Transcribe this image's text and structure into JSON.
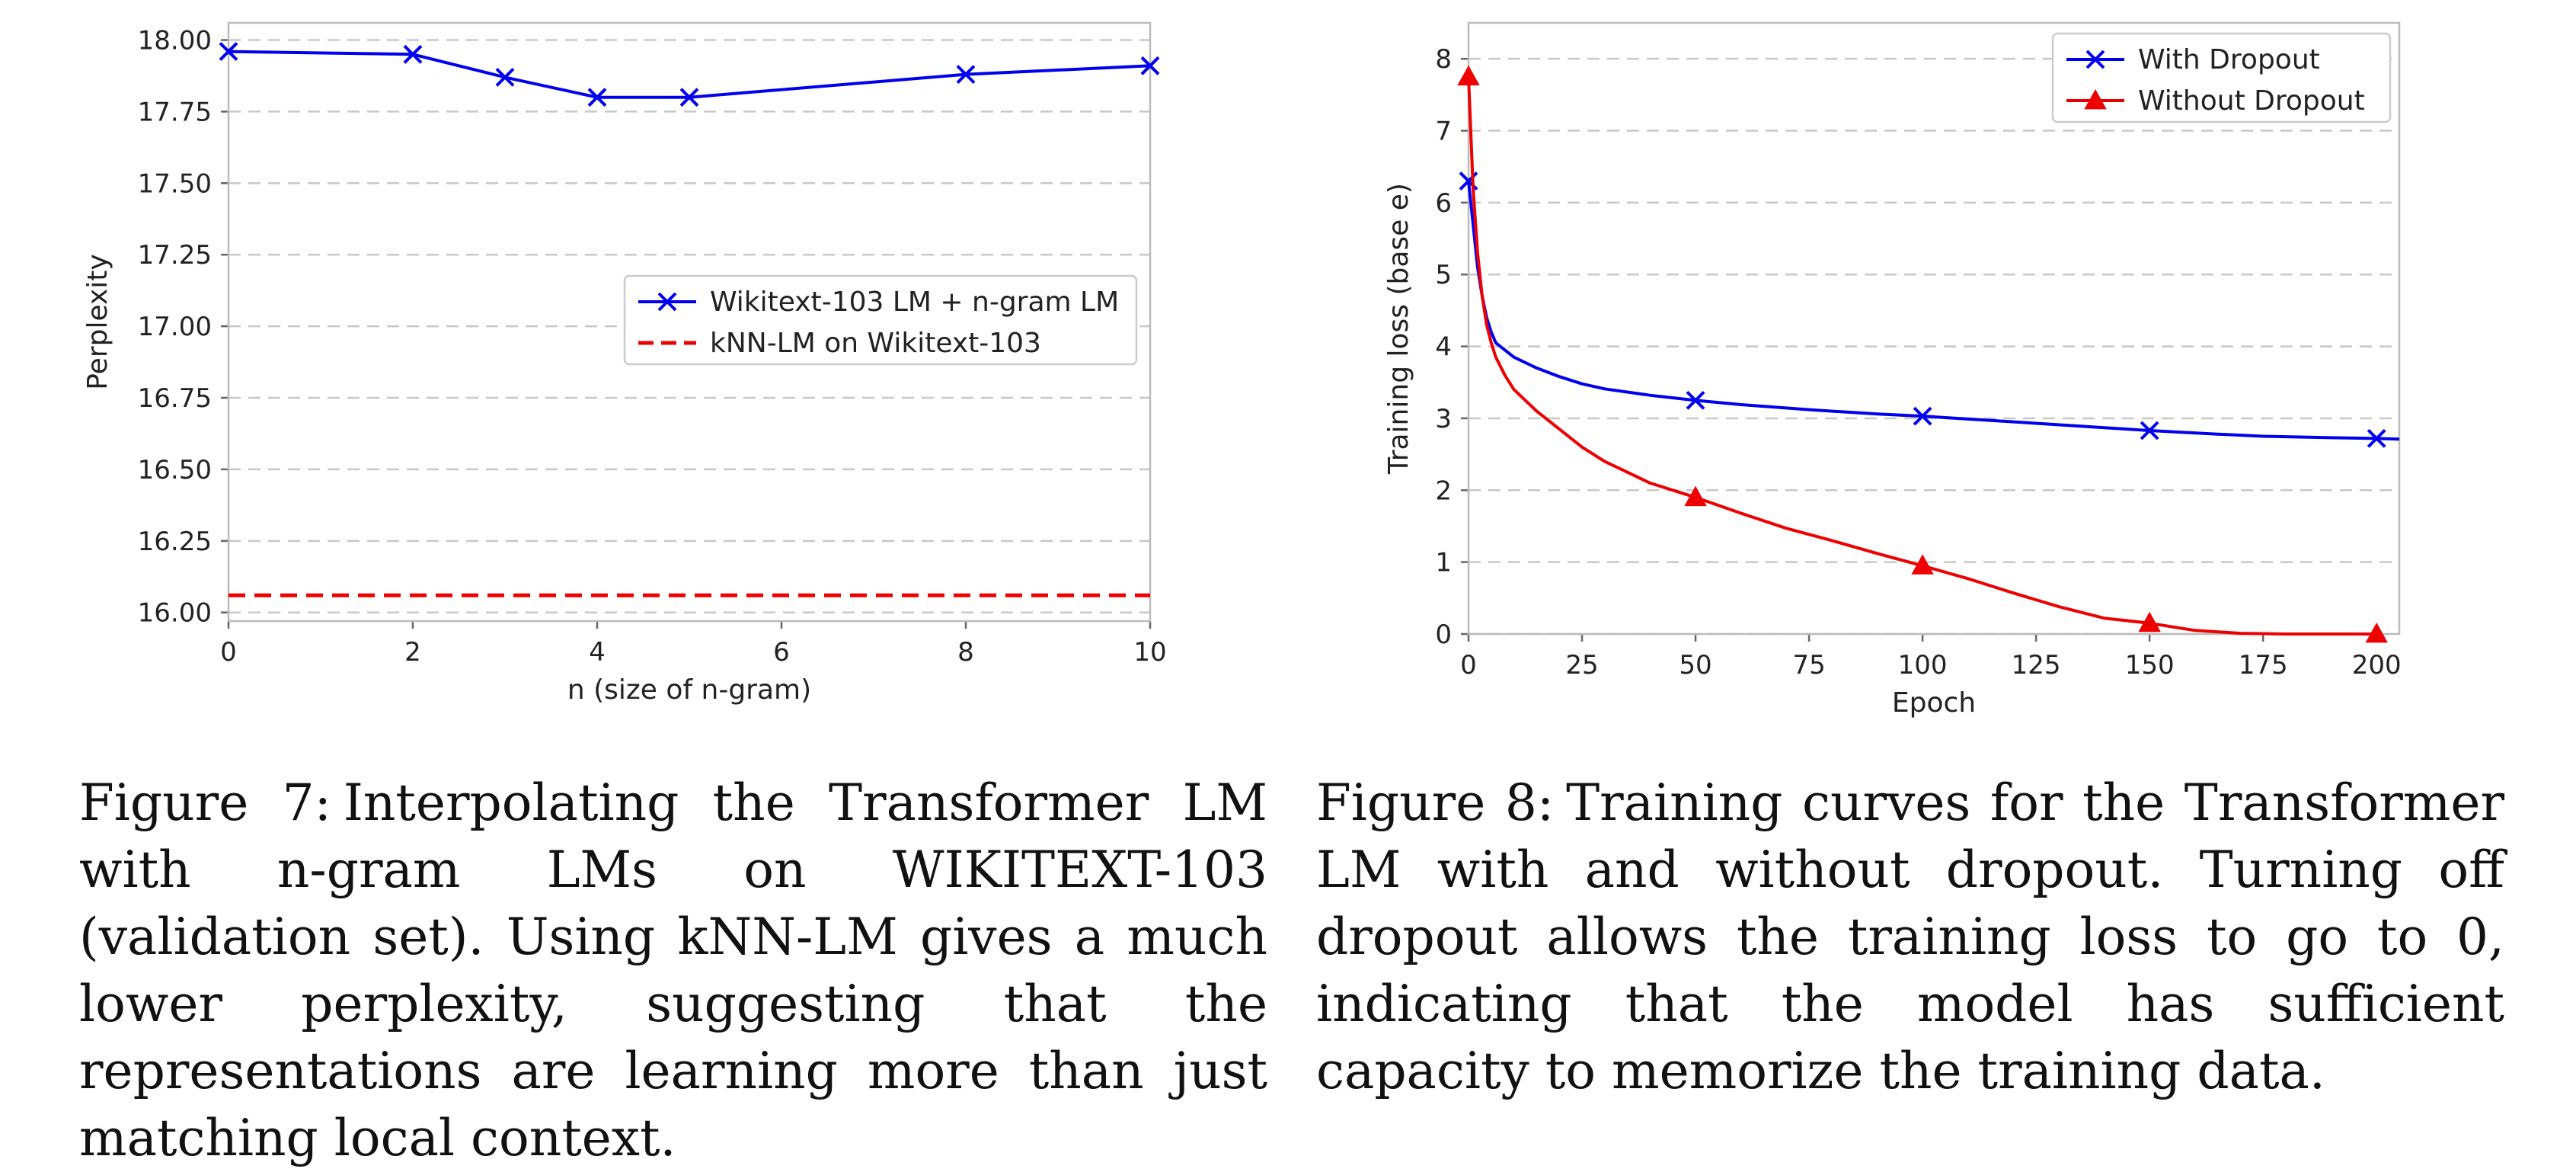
{
  "chart_data": [
    {
      "type": "line",
      "xlabel": "n (size of n-gram)",
      "ylabel": "Perplexity",
      "xlim": [
        0,
        10
      ],
      "ylim": [
        15.97,
        18.06
      ],
      "xticks": [
        "0",
        "2",
        "4",
        "6",
        "8",
        "10"
      ],
      "yticks": [
        "16.00",
        "16.25",
        "16.50",
        "16.75",
        "17.00",
        "17.25",
        "17.50",
        "17.75",
        "18.00"
      ],
      "grid": "horizontal dashed",
      "legend_position": "center-right",
      "series": [
        {
          "name": "Wikitext-103 LM + n-gram LM",
          "color": "#0000ee",
          "marker": "x",
          "style": "solid",
          "x": [
            0,
            2,
            3,
            4,
            5,
            8,
            10
          ],
          "y": [
            17.96,
            17.95,
            17.87,
            17.8,
            17.8,
            17.88,
            17.91
          ]
        },
        {
          "name": "kNN-LM on Wikitext-103",
          "color": "#ee0000",
          "marker": "none",
          "style": "dashed",
          "x": [
            0,
            10
          ],
          "y": [
            16.06,
            16.06
          ]
        }
      ]
    },
    {
      "type": "line",
      "xlabel": "Epoch",
      "ylabel": "Training loss (base e)",
      "xlim": [
        0,
        205
      ],
      "ylim": [
        0,
        8.5
      ],
      "xticks": [
        "0",
        "25",
        "50",
        "75",
        "100",
        "125",
        "150",
        "175",
        "200"
      ],
      "yticks": [
        "0",
        "1",
        "2",
        "3",
        "4",
        "5",
        "6",
        "7",
        "8"
      ],
      "grid": "horizontal dashed",
      "legend_position": "top-right",
      "series": [
        {
          "name": "With Dropout",
          "color": "#0000ee",
          "marker": "x",
          "marker_x": [
            0,
            50,
            100,
            150,
            200
          ],
          "x": [
            0,
            1,
            2,
            3,
            4,
            5,
            6,
            8,
            10,
            15,
            20,
            25,
            30,
            40,
            50,
            60,
            75,
            90,
            100,
            110,
            125,
            140,
            150,
            165,
            175,
            190,
            200,
            205
          ],
          "y": [
            6.3,
            5.7,
            5.1,
            4.7,
            4.4,
            4.2,
            4.05,
            3.95,
            3.85,
            3.7,
            3.58,
            3.48,
            3.41,
            3.32,
            3.25,
            3.19,
            3.12,
            3.06,
            3.03,
            2.99,
            2.93,
            2.87,
            2.83,
            2.78,
            2.75,
            2.73,
            2.72,
            2.71
          ]
        },
        {
          "name": "Without Dropout",
          "color": "#ee0000",
          "marker": "triangle",
          "marker_x": [
            0,
            50,
            100,
            150,
            200
          ],
          "x": [
            0,
            1,
            2,
            3,
            4,
            5,
            6,
            8,
            10,
            15,
            20,
            25,
            30,
            35,
            40,
            45,
            50,
            60,
            70,
            80,
            90,
            100,
            110,
            120,
            130,
            140,
            150,
            160,
            170,
            180,
            190,
            200
          ],
          "y": [
            7.75,
            6.2,
            5.3,
            4.7,
            4.3,
            4.05,
            3.85,
            3.6,
            3.4,
            3.1,
            2.85,
            2.6,
            2.4,
            2.25,
            2.1,
            2.0,
            1.9,
            1.68,
            1.47,
            1.3,
            1.12,
            0.95,
            0.77,
            0.57,
            0.38,
            0.22,
            0.15,
            0.05,
            0.01,
            0.0,
            0.0,
            0.0
          ]
        }
      ]
    }
  ],
  "captions": {
    "fig7": {
      "label": "Figure 7:",
      "text": "Interpolating the Transformer LM with n-gram LMs on WIKITEXT-103 (validation set). Using kNN-LM gives a much lower perplexity, suggesting that the representations are learning more than just matching local context."
    },
    "fig8": {
      "label": "Figure 8:",
      "text": "Training curves for the Transformer LM with and without dropout. Turning off dropout allows the training loss to go to 0, indicating that the model has sufficient capacity to memorize the training data."
    }
  }
}
